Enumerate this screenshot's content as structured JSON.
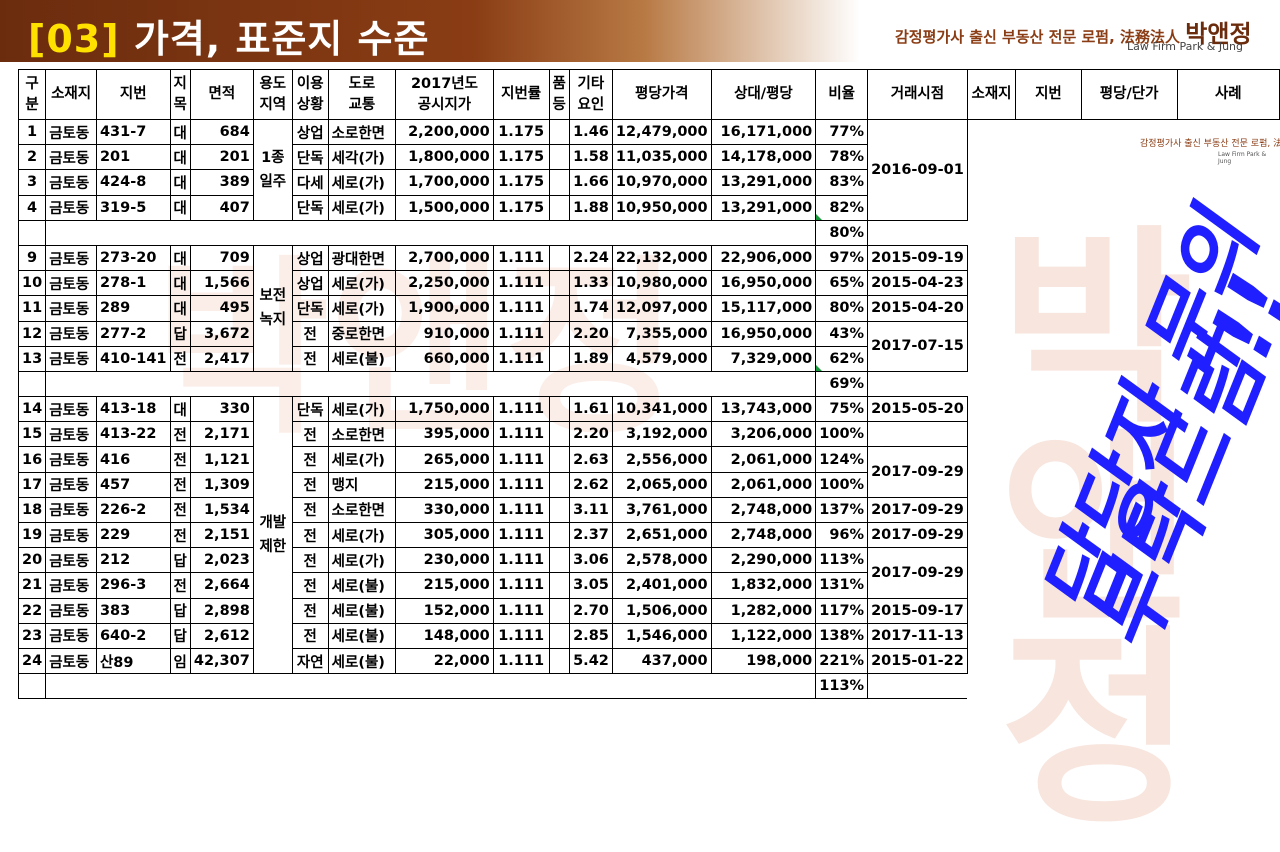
{
  "banner": {
    "bracket": "[03]",
    "title": "가격, 표준지 수준"
  },
  "firm": {
    "line": "감정평가사 출신 부동산 전문 로펌,",
    "legal": "法務法人",
    "name": "박앤정",
    "sub": "Law Firm  Park & Jung"
  },
  "side_logo": {
    "line": "감정평가사 출신 부동산 전문 로펌, 法務法人 박앤정",
    "sub": "Law Firm Park & Jung"
  },
  "stamp": {
    "line1": "담당자 문의",
    "line2": "부탁드림!!"
  },
  "watermark": "박앤정",
  "headers": [
    "구분",
    "소재지",
    "지번",
    "지목",
    "면적",
    "용도지역",
    "이용상황",
    "도로교통",
    "2017년도 공시지가",
    "지번률",
    "품등",
    "기타요인",
    "평당가격",
    "상대/평당",
    "비율",
    "거래시점",
    "소재지",
    "지번",
    "평당/단가",
    "사례"
  ],
  "groups": [
    {
      "zone": "1종 일주",
      "avg": "80%",
      "rows": [
        [
          "1",
          "금토동",
          "431-7",
          "대",
          "684",
          "상업",
          "소로한면",
          "2,200,000",
          "1.175",
          "",
          "1.46",
          "12,479,000",
          "16,171,000",
          "77%"
        ],
        [
          "2",
          "금토동",
          "201",
          "대",
          "201",
          "단독",
          "세각(가)",
          "1,800,000",
          "1.175",
          "",
          "1.58",
          "11,035,000",
          "14,178,000",
          "78%"
        ],
        [
          "3",
          "금토동",
          "424-8",
          "대",
          "389",
          "다세",
          "세로(가)",
          "1,700,000",
          "1.175",
          "",
          "1.66",
          "10,970,000",
          "13,291,000",
          "83%"
        ],
        [
          "4",
          "금토동",
          "319-5",
          "대",
          "407",
          "단독",
          "세로(가)",
          "1,500,000",
          "1.175",
          "",
          "1.88",
          "10,950,000",
          "13,291,000",
          "82%"
        ]
      ],
      "dates": [
        {
          "text": "2016-09-01",
          "span": 4
        }
      ]
    },
    {
      "zone": "보전 녹지",
      "avg": "69%",
      "rows": [
        [
          "9",
          "금토동",
          "273-20",
          "대",
          "709",
          "상업",
          "광대한면",
          "2,700,000",
          "1.111",
          "",
          "2.24",
          "22,132,000",
          "22,906,000",
          "97%"
        ],
        [
          "10",
          "금토동",
          "278-1",
          "대",
          "1,566",
          "상업",
          "세로(가)",
          "2,250,000",
          "1.111",
          "",
          "1.33",
          "10,980,000",
          "16,950,000",
          "65%"
        ],
        [
          "11",
          "금토동",
          "289",
          "대",
          "495",
          "단독",
          "세로(가)",
          "1,900,000",
          "1.111",
          "",
          "1.74",
          "12,097,000",
          "15,117,000",
          "80%"
        ],
        [
          "12",
          "금토동",
          "277-2",
          "답",
          "3,672",
          "전",
          "중로한면",
          "910,000",
          "1.111",
          "",
          "2.20",
          "7,355,000",
          "16,950,000",
          "43%"
        ],
        [
          "13",
          "금토동",
          "410-141",
          "전",
          "2,417",
          "전",
          "세로(불)",
          "660,000",
          "1.111",
          "",
          "1.89",
          "4,579,000",
          "7,329,000",
          "62%"
        ]
      ],
      "dates": [
        {
          "text": "2015-09-19",
          "span": 1
        },
        {
          "text": "2015-04-23",
          "span": 1
        },
        {
          "text": "2015-04-20",
          "span": 1
        },
        {
          "text": "2017-07-15",
          "span": 2
        }
      ]
    },
    {
      "zone": "개발 제한",
      "avg": "113%",
      "rows": [
        [
          "14",
          "금토동",
          "413-18",
          "대",
          "330",
          "단독",
          "세로(가)",
          "1,750,000",
          "1.111",
          "",
          "1.61",
          "10,341,000",
          "13,743,000",
          "75%"
        ],
        [
          "15",
          "금토동",
          "413-22",
          "전",
          "2,171",
          "전",
          "소로한면",
          "395,000",
          "1.111",
          "",
          "2.20",
          "3,192,000",
          "3,206,000",
          "100%"
        ],
        [
          "16",
          "금토동",
          "416",
          "전",
          "1,121",
          "전",
          "세로(가)",
          "265,000",
          "1.111",
          "",
          "2.63",
          "2,556,000",
          "2,061,000",
          "124%"
        ],
        [
          "17",
          "금토동",
          "457",
          "전",
          "1,309",
          "전",
          "맹지",
          "215,000",
          "1.111",
          "",
          "2.62",
          "2,065,000",
          "2,061,000",
          "100%"
        ],
        [
          "18",
          "금토동",
          "226-2",
          "전",
          "1,534",
          "전",
          "소로한면",
          "330,000",
          "1.111",
          "",
          "3.11",
          "3,761,000",
          "2,748,000",
          "137%"
        ],
        [
          "19",
          "금토동",
          "229",
          "전",
          "2,151",
          "전",
          "세로(가)",
          "305,000",
          "1.111",
          "",
          "2.37",
          "2,651,000",
          "2,748,000",
          "96%"
        ],
        [
          "20",
          "금토동",
          "212",
          "답",
          "2,023",
          "전",
          "세로(가)",
          "230,000",
          "1.111",
          "",
          "3.06",
          "2,578,000",
          "2,290,000",
          "113%"
        ],
        [
          "21",
          "금토동",
          "296-3",
          "전",
          "2,664",
          "전",
          "세로(불)",
          "215,000",
          "1.111",
          "",
          "3.05",
          "2,401,000",
          "1,832,000",
          "131%"
        ],
        [
          "22",
          "금토동",
          "383",
          "답",
          "2,898",
          "전",
          "세로(불)",
          "152,000",
          "1.111",
          "",
          "2.70",
          "1,506,000",
          "1,282,000",
          "117%"
        ],
        [
          "23",
          "금토동",
          "640-2",
          "답",
          "2,612",
          "전",
          "세로(불)",
          "148,000",
          "1.111",
          "",
          "2.85",
          "1,546,000",
          "1,122,000",
          "138%"
        ],
        [
          "24",
          "금토동",
          "산89",
          "임",
          "42,307",
          "자연",
          "세로(불)",
          "22,000",
          "1.111",
          "",
          "5.42",
          "437,000",
          "198,000",
          "221%"
        ]
      ],
      "dates": [
        {
          "text": "2015-05-20",
          "span": 1
        },
        {
          "text": "",
          "span": 1
        },
        {
          "text": "2017-09-29",
          "span": 2
        },
        {
          "text": "2017-09-29",
          "span": 1
        },
        {
          "text": "2017-09-29",
          "span": 1
        },
        {
          "text": "2017-09-29",
          "span": 2
        },
        {
          "text": "2015-09-17",
          "span": 1
        },
        {
          "text": "2017-11-13",
          "span": 1
        },
        {
          "text": "2015-01-22",
          "span": 1
        }
      ]
    }
  ]
}
